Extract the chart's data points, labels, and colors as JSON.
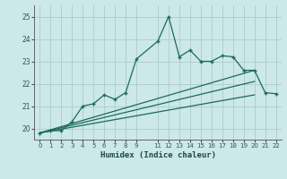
{
  "xlabel": "Humidex (Indice chaleur)",
  "bg_color": "#cce8e8",
  "grid_color": "#b0d0d0",
  "line_color": "#1a6b5a",
  "xlim": [
    -0.5,
    22.5
  ],
  "ylim": [
    19.5,
    25.5
  ],
  "yticks": [
    20,
    21,
    22,
    23,
    24,
    25
  ],
  "xtick_vals": [
    0,
    1,
    2,
    3,
    4,
    5,
    6,
    7,
    8,
    9,
    11,
    12,
    13,
    14,
    15,
    16,
    17,
    18,
    19,
    20,
    21,
    22
  ],
  "xtick_labels": [
    "0",
    "1",
    "2",
    "3",
    "4",
    "5",
    "6",
    "7",
    "8",
    "9",
    "11",
    "12",
    "13",
    "14",
    "15",
    "16",
    "17",
    "18",
    "19",
    "20",
    "21",
    "22"
  ],
  "series1_x": [
    0,
    1,
    2,
    3,
    4,
    5,
    6,
    7,
    8,
    9,
    11,
    12,
    13,
    14,
    15,
    16,
    17,
    18,
    19,
    20,
    21,
    22
  ],
  "series1_y": [
    19.8,
    19.9,
    19.9,
    20.3,
    21.0,
    21.1,
    21.5,
    21.3,
    21.6,
    23.1,
    23.9,
    25.0,
    23.2,
    23.5,
    23.0,
    23.0,
    23.25,
    23.2,
    22.6,
    22.6,
    21.6,
    21.55
  ],
  "series2_x": [
    0,
    20
  ],
  "series2_y": [
    19.8,
    22.6
  ],
  "series3_x": [
    0,
    20
  ],
  "series3_y": [
    19.8,
    22.1
  ],
  "series4_x": [
    0,
    20
  ],
  "series4_y": [
    19.8,
    21.5
  ]
}
